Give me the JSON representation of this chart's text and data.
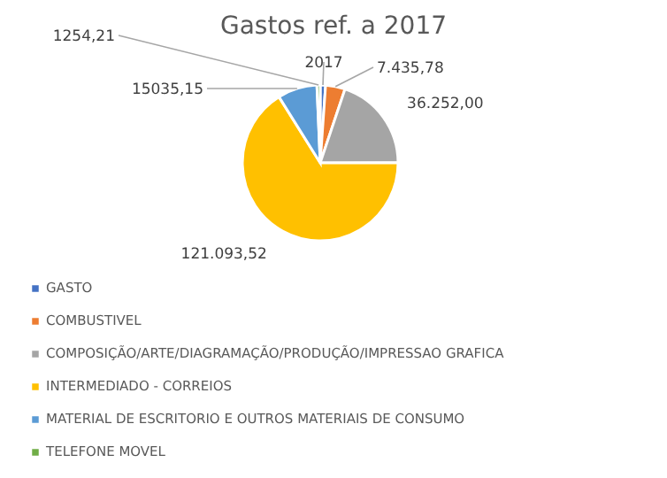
{
  "chart_data": {
    "type": "pie",
    "title": "Gastos ref. a 2017",
    "categories": [
      "GASTO",
      "COMBUSTIVEL",
      "COMPOSIÇÃO/ARTE/DIAGRAMAÇÃO/PRODUÇÃO/IMPRESSAO GRAFICA",
      "INTERMEDIADO - CORREIOS",
      "MATERIAL DE ESCRITORIO E OUTROS MATERIAIS DE CONSUMO",
      "TELEFONE MOVEL"
    ],
    "values": [
      2017,
      7435.78,
      36252.0,
      121093.52,
      15035.15,
      1254.21
    ],
    "value_labels": [
      "2017",
      "7.435,78",
      "36.252,00",
      "121.093,52",
      "15035,15",
      "1254,21"
    ],
    "colors": [
      "#4472c4",
      "#ed7d31",
      "#a5a5a5",
      "#ffc000",
      "#5b9bd5",
      "#70ad47"
    ],
    "legend": "bottom left"
  }
}
